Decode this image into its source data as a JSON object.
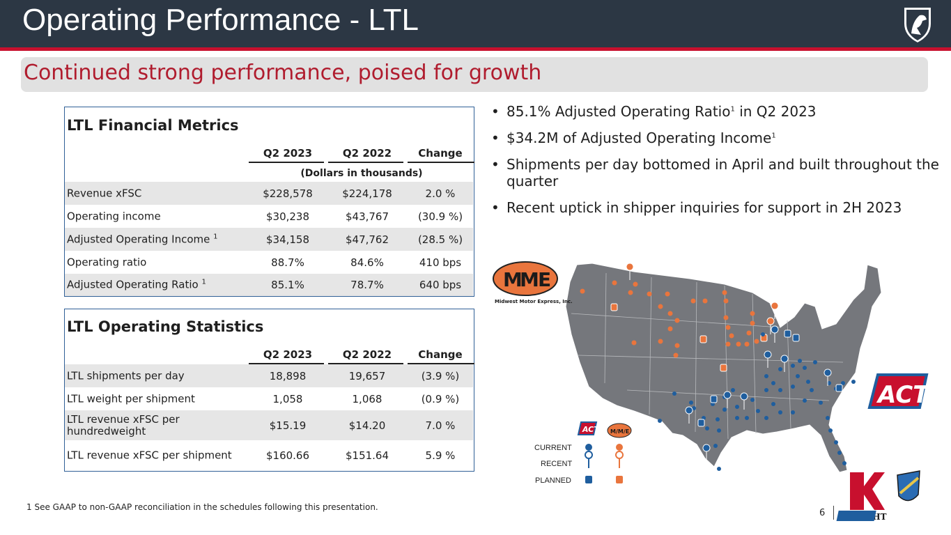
{
  "header": {
    "title": "Operating Performance - LTL"
  },
  "subtitle": "Continued strong performance, poised for growth",
  "financial": {
    "title": "LTL Financial Metrics",
    "columns": [
      "Q2 2023",
      "Q2 2022",
      "Change"
    ],
    "units": "(Dollars in thousands)",
    "rows": [
      {
        "label": "Revenue xFSC",
        "sup": "",
        "q2_2023": "$228,578",
        "q2_2022": "$224,178",
        "change": "2.0 %"
      },
      {
        "label": "Operating income",
        "sup": "",
        "q2_2023": "$30,238",
        "q2_2022": "$43,767",
        "change": "(30.9 %)"
      },
      {
        "label": "Adjusted Operating Income",
        "sup": "1",
        "q2_2023": "$34,158",
        "q2_2022": "$47,762",
        "change": "(28.5 %)"
      },
      {
        "label": "Operating ratio",
        "sup": "",
        "q2_2023": "88.7%",
        "q2_2022": "84.6%",
        "change": "410 bps"
      },
      {
        "label": "Adjusted Operating Ratio",
        "sup": "1",
        "q2_2023": "85.1%",
        "q2_2022": "78.7%",
        "change": "640 bps"
      }
    ]
  },
  "operating": {
    "title": "LTL Operating Statistics",
    "columns": [
      "Q2 2023",
      "Q2 2022",
      "Change"
    ],
    "rows": [
      {
        "label": "LTL shipments per day",
        "q2_2023": "18,898",
        "q2_2022": "19,657",
        "change": "(3.9 %)"
      },
      {
        "label": "LTL weight per shipment",
        "q2_2023": "1,058",
        "q2_2022": "1,068",
        "change": "(0.9 %)"
      },
      {
        "label": "LTL revenue xFSC per hundredweight",
        "q2_2023": "$15.19",
        "q2_2022": "$14.20",
        "change": "7.0 %"
      },
      {
        "label": "LTL revenue xFSC per shipment",
        "q2_2023": "$160.66",
        "q2_2022": "$151.64",
        "change": "5.9 %"
      }
    ]
  },
  "bullets": [
    {
      "before": "85.1% Adjusted Operating Ratio",
      "sup": "1",
      "after": " in Q2 2023"
    },
    {
      "before": "$34.2M of Adjusted Operating Income",
      "sup": "1",
      "after": ""
    },
    {
      "before": "Shipments per day bottomed in April and built throughout the quarter",
      "sup": "",
      "after": ""
    },
    {
      "before": "Recent uptick in shipper inquiries for support in 2H 2023",
      "sup": "",
      "after": ""
    }
  ],
  "map": {
    "mme_logo": {
      "m1": "M",
      "m2": "M",
      "e": "E",
      "caption": "Midwest Motor Express, Inc."
    },
    "act_logo": "ACT",
    "legend": {
      "current": "CURRENT",
      "recent": "RECENT",
      "planned": "PLANNED",
      "mme_small": "M/M/E",
      "act_small": "ACT"
    }
  },
  "colors": {
    "act_blue": "#1f5e9e",
    "mme_orange": "#e9753d",
    "accent_red": "#b01c2e",
    "header": "#2c3744"
  },
  "brands": {
    "knight": "KNIGHT",
    "swift": "SWIFT"
  },
  "footnote": "1    See GAAP to non-GAAP reconciliation in the schedules following this presentation.",
  "page_number": "6"
}
